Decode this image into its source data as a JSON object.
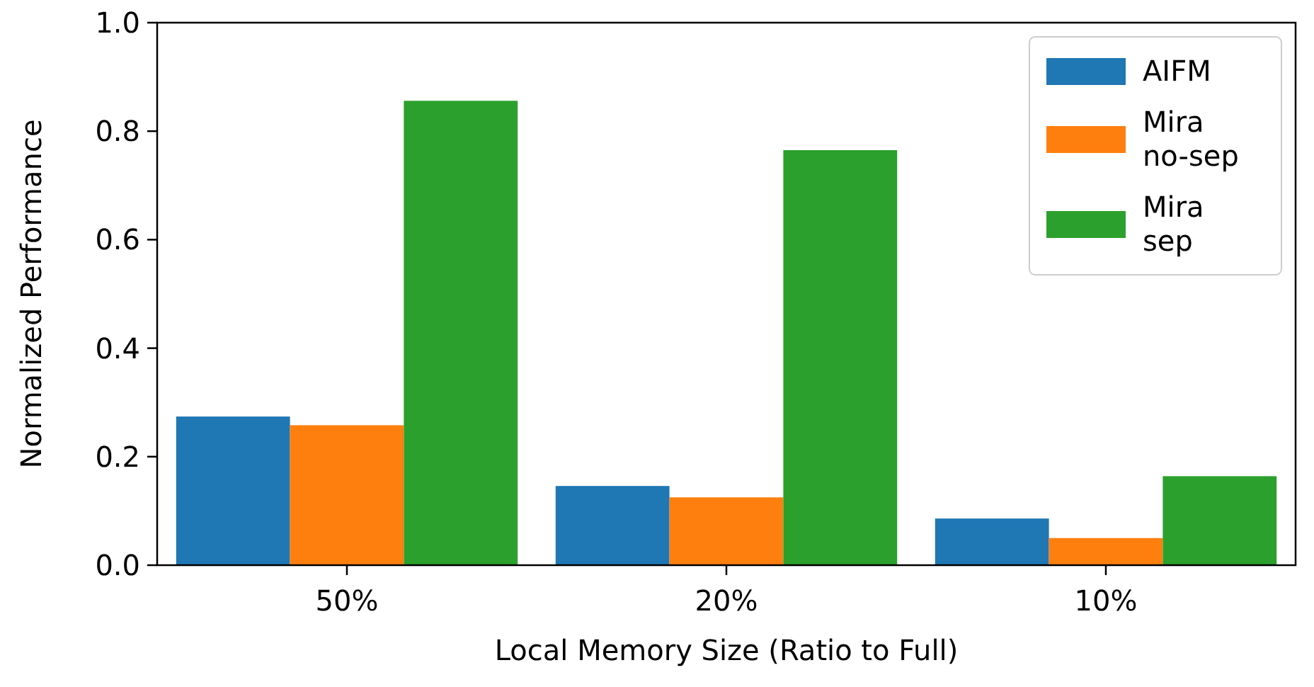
{
  "chart_data": {
    "type": "bar",
    "xlabel": "Local Memory Size (Ratio to Full)",
    "ylabel": "Normalized Performance",
    "categories": [
      "50%",
      "20%",
      "10%"
    ],
    "series": [
      {
        "name": "AIFM",
        "color": "#1f77b4",
        "values": [
          0.274,
          0.146,
          0.086
        ]
      },
      {
        "name": "Mira no-sep",
        "color": "#ff7f0e",
        "values": [
          0.258,
          0.125,
          0.05
        ]
      },
      {
        "name": "Mira sep",
        "color": "#2ca02c",
        "values": [
          0.856,
          0.765,
          0.164
        ]
      }
    ],
    "ylim": [
      0,
      1
    ],
    "yticks": [
      {
        "value": 0,
        "label": "0.0"
      },
      {
        "value": 0.2,
        "label": "0.2"
      },
      {
        "value": 0.4,
        "label": "0.4"
      },
      {
        "value": 0.6,
        "label": "0.6"
      },
      {
        "value": 0.8,
        "label": "0.8"
      },
      {
        "value": 1,
        "label": "1.0"
      }
    ],
    "grid": false,
    "legend": "top right"
  }
}
